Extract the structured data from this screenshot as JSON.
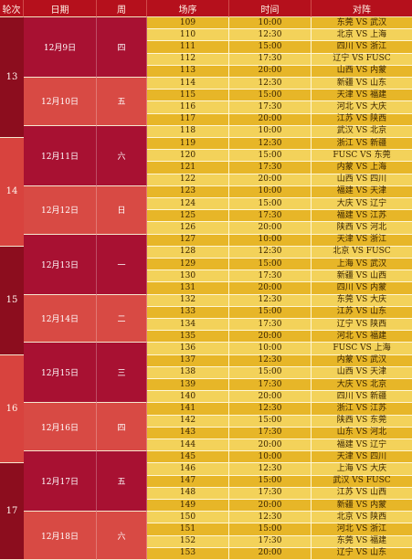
{
  "header": {
    "round": "轮次",
    "date": "日期",
    "weekday": "周",
    "match_no": "场序",
    "time": "时间",
    "matchup": "对阵"
  },
  "rounds": [
    {
      "label": "13",
      "first": 0,
      "count": 10
    },
    {
      "label": "14",
      "first": 10,
      "count": 9
    },
    {
      "label": "15",
      "first": 19,
      "count": 9
    },
    {
      "label": "16",
      "first": 28,
      "count": 9
    },
    {
      "label": "17",
      "first": 37,
      "count": 8
    }
  ],
  "days": [
    {
      "date": "12月9日",
      "weekday": "四",
      "first": 0,
      "count": 5
    },
    {
      "date": "12月10日",
      "weekday": "五",
      "first": 5,
      "count": 4
    },
    {
      "date": "12月11日",
      "weekday": "六",
      "first": 9,
      "count": 5
    },
    {
      "date": "12月12日",
      "weekday": "日",
      "first": 14,
      "count": 4
    },
    {
      "date": "12月13日",
      "weekday": "一",
      "first": 18,
      "count": 5
    },
    {
      "date": "12月14日",
      "weekday": "二",
      "first": 23,
      "count": 4
    },
    {
      "date": "12月15日",
      "weekday": "三",
      "first": 27,
      "count": 5
    },
    {
      "date": "12月16日",
      "weekday": "四",
      "first": 32,
      "count": 4
    },
    {
      "date": "12月17日",
      "weekday": "五",
      "first": 36,
      "count": 5
    },
    {
      "date": "12月18日",
      "weekday": "六",
      "first": 41,
      "count": 4
    }
  ],
  "matches": [
    {
      "no": "109",
      "time": "10:00",
      "matchup": "东莞 VS 武汉"
    },
    {
      "no": "110",
      "time": "12:30",
      "matchup": "北京 VS 上海"
    },
    {
      "no": "111",
      "time": "15:00",
      "matchup": "四川 VS 浙江"
    },
    {
      "no": "112",
      "time": "17:30",
      "matchup": "辽宁 VS FUSC"
    },
    {
      "no": "113",
      "time": "20:00",
      "matchup": "山西 VS 内蒙"
    },
    {
      "no": "114",
      "time": "12:30",
      "matchup": "新疆 VS 山东"
    },
    {
      "no": "115",
      "time": "15:00",
      "matchup": "天津 VS 福建"
    },
    {
      "no": "116",
      "time": "17:30",
      "matchup": "河北 VS 大庆"
    },
    {
      "no": "117",
      "time": "20:00",
      "matchup": "江苏 VS 陕西"
    },
    {
      "no": "118",
      "time": "10:00",
      "matchup": "武汉 VS 北京"
    },
    {
      "no": "119",
      "time": "12:30",
      "matchup": "浙江 VS 新疆"
    },
    {
      "no": "120",
      "time": "15:00",
      "matchup": "FUSC VS 东莞"
    },
    {
      "no": "121",
      "time": "17:30",
      "matchup": "内蒙 VS 上海"
    },
    {
      "no": "122",
      "time": "20:00",
      "matchup": "山西 VS 四川"
    },
    {
      "no": "123",
      "time": "10:00",
      "matchup": "福建 VS 天津"
    },
    {
      "no": "124",
      "time": "15:00",
      "matchup": "大庆 VS 辽宁"
    },
    {
      "no": "125",
      "time": "17:30",
      "matchup": "福建 VS 江苏"
    },
    {
      "no": "126",
      "time": "20:00",
      "matchup": "陕西 VS 河北"
    },
    {
      "no": "127",
      "time": "10:00",
      "matchup": "天津 VS 浙江"
    },
    {
      "no": "128",
      "time": "12:30",
      "matchup": "北京 VS FUSC"
    },
    {
      "no": "129",
      "time": "15:00",
      "matchup": "上海 VS 武汉"
    },
    {
      "no": "130",
      "time": "17:30",
      "matchup": "新疆 VS 山西"
    },
    {
      "no": "131",
      "time": "20:00",
      "matchup": "四川 VS 内蒙"
    },
    {
      "no": "132",
      "time": "12:30",
      "matchup": "东莞 VS 大庆"
    },
    {
      "no": "133",
      "time": "15:00",
      "matchup": "江苏 VS 山东"
    },
    {
      "no": "134",
      "time": "17:30",
      "matchup": "辽宁 VS 陕西"
    },
    {
      "no": "135",
      "time": "20:00",
      "matchup": "河北 VS 福建"
    },
    {
      "no": "136",
      "time": "10:00",
      "matchup": "FUSC VS 上海"
    },
    {
      "no": "137",
      "time": "12:30",
      "matchup": "内蒙 VS 武汉"
    },
    {
      "no": "138",
      "time": "15:00",
      "matchup": "山西 VS 天津"
    },
    {
      "no": "139",
      "time": "17:30",
      "matchup": "大庆 VS 北京"
    },
    {
      "no": "140",
      "time": "20:00",
      "matchup": "四川 VS 新疆"
    },
    {
      "no": "141",
      "time": "12:30",
      "matchup": "浙江 VS 江苏"
    },
    {
      "no": "142",
      "time": "15:00",
      "matchup": "陕西 VS 东莞"
    },
    {
      "no": "143",
      "time": "17:30",
      "matchup": "山东 VS 河北"
    },
    {
      "no": "144",
      "time": "20:00",
      "matchup": "福建 VS 辽宁"
    },
    {
      "no": "145",
      "time": "10:00",
      "matchup": "天津 VS 四川"
    },
    {
      "no": "146",
      "time": "12:30",
      "matchup": "上海 VS 大庆"
    },
    {
      "no": "147",
      "time": "15:00",
      "matchup": "武汉 VS FUSC"
    },
    {
      "no": "148",
      "time": "17:30",
      "matchup": "江苏 VS 山西"
    },
    {
      "no": "149",
      "time": "20:00",
      "matchup": "新疆 VS 内蒙"
    },
    {
      "no": "150",
      "time": "12:30",
      "matchup": "北京 VS 陕西"
    },
    {
      "no": "151",
      "time": "15:00",
      "matchup": "河北 VS 浙江"
    },
    {
      "no": "152",
      "time": "17:30",
      "matchup": "东莞 VS 福建"
    },
    {
      "no": "153",
      "time": "20:00",
      "matchup": "辽宁 VS 山东"
    }
  ],
  "colors": {
    "header": "#b5101c",
    "round_odd": "#8c0d1e",
    "round_even": "#d8433e",
    "day_a": "#a81132",
    "day_b": "#d84a44",
    "row_a": "#e7b628",
    "row_b": "#f3d25a"
  }
}
